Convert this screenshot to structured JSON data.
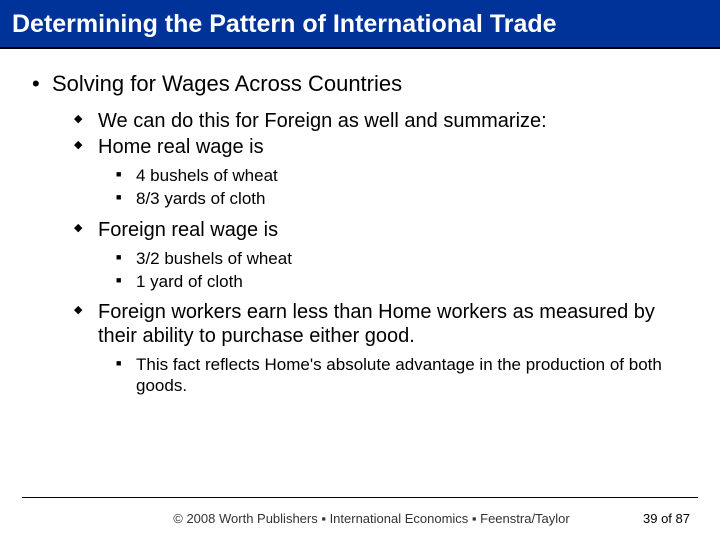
{
  "title": "Determining the Pattern of International Trade",
  "heading": "Solving for Wages Across Countries",
  "items": {
    "a": "We can do this for Foreign as well and summarize:",
    "b": "Home real wage is",
    "b1": "4 bushels of wheat",
    "b2": "8/3 yards of cloth",
    "c": "Foreign real wage is",
    "c1": "3/2 bushels of wheat",
    "c2": "1 yard of cloth",
    "d": "Foreign workers earn less than Home workers as measured by their ability to purchase either good.",
    "d1": "This fact reflects Home's absolute advantage in the production of both goods."
  },
  "footer": {
    "copyright": "© 2008 Worth Publishers ▪ International Economics ▪ Feenstra/Taylor",
    "page": "39 of 87"
  },
  "colors": {
    "titlebar_bg": "#003399",
    "titlebar_text": "#ffffff",
    "body_bg": "#ffffff",
    "text": "#000000"
  }
}
